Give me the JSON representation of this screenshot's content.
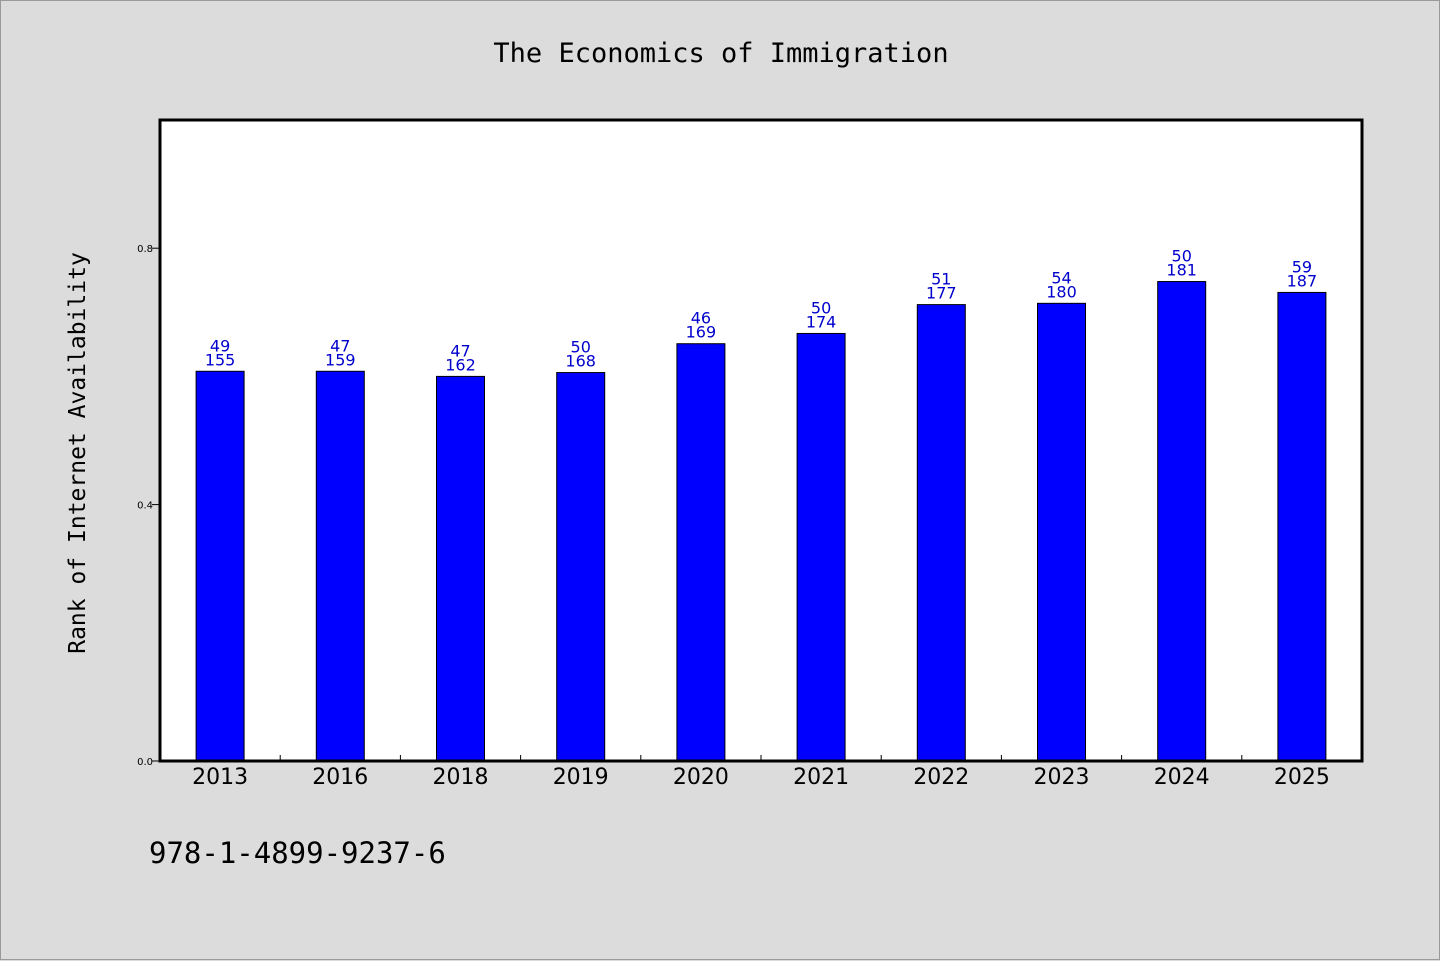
{
  "chart_data": {
    "type": "bar",
    "title": "The Economics of Immigration",
    "ylabel": "Rank of Internet Availability",
    "xlabel": "",
    "categories": [
      "2013",
      "2016",
      "2018",
      "2019",
      "2020",
      "2021",
      "2022",
      "2023",
      "2024",
      "2025"
    ],
    "values": [
      0.608,
      0.608,
      0.6,
      0.606,
      0.651,
      0.667,
      0.712,
      0.714,
      0.748,
      0.731
    ],
    "bar_labels_top": [
      "49",
      "47",
      "47",
      "50",
      "46",
      "50",
      "51",
      "54",
      "50",
      "59"
    ],
    "bar_labels_bottom": [
      "155",
      "159",
      "162",
      "168",
      "169",
      "174",
      "177",
      "180",
      "181",
      "187"
    ],
    "ylim": [
      0,
      1.0
    ],
    "yticks": [
      "0.0",
      "0.4",
      "0.8"
    ],
    "grid": false,
    "colors": {
      "bar": "#0000ff",
      "bar_label": "#0000cc",
      "background": "#dcdcdc",
      "plot_background": "#ffffff"
    }
  },
  "footer": {
    "isbn": "978-1-4899-9237-6"
  }
}
